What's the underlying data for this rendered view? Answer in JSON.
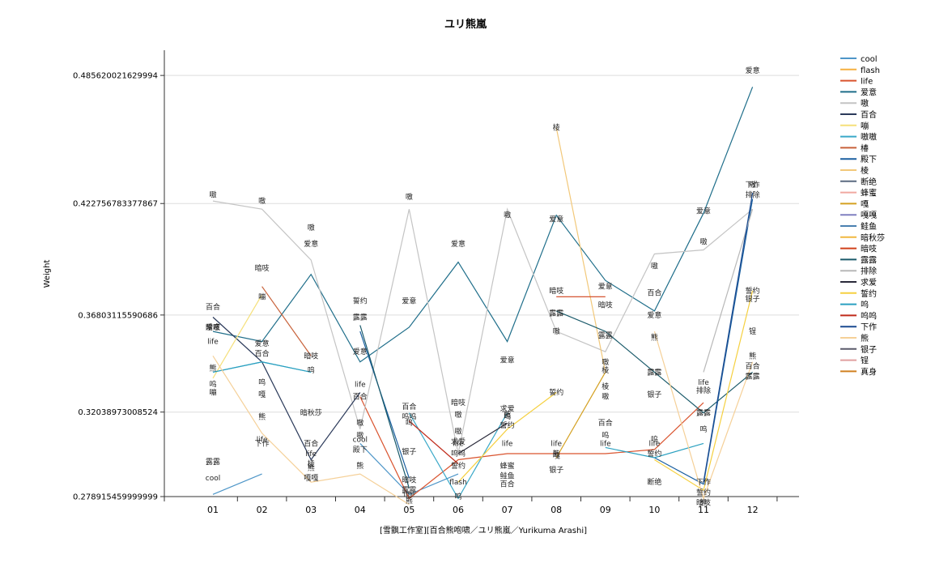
{
  "chart_data": {
    "type": "line",
    "title": "ユリ熊嵐",
    "xlabel": "[雪飘工作室][百合熊咆啸／ユリ熊嵐／Yurikuma Arashi]",
    "ylabel": "Weight",
    "categories": [
      "01",
      "02",
      "03",
      "04",
      "05",
      "06",
      "07",
      "08",
      "09",
      "10",
      "11",
      "12"
    ],
    "yticks": [
      0.485620021629994,
      0.422756783377867,
      0.36803115590686,
      0.32038973008524,
      0.278915459999999
    ],
    "ytick_labels": [
      "0.485620021629994",
      "0.422756783377867",
      "0.36803115590686",
      "0.32038973008524",
      "0.278915459999999"
    ],
    "ylim": [
      0.278915459999999,
      0.498
    ],
    "grid": true,
    "legend_position": "right",
    "series": [
      {
        "name": "cool",
        "color": "#4e96c8",
        "values": [
          0.28,
          0.29,
          null,
          0.305,
          0.28,
          0.29,
          null,
          null,
          null,
          null,
          null,
          null
        ]
      },
      {
        "name": "flash",
        "color": "#f6b040",
        "values": [
          null,
          null,
          null,
          null,
          null,
          0.284,
          null,
          null,
          null,
          null,
          null,
          null
        ]
      },
      {
        "name": "life",
        "color": "#d9532e",
        "values": [
          0.357,
          null,
          null,
          0.328,
          0.278,
          0.297,
          0.3,
          0.3,
          0.3,
          0.302,
          0.325,
          null
        ]
      },
      {
        "name": "爱意",
        "color": "#1f6e8a",
        "values": [
          0.36,
          0.355,
          0.388,
          0.345,
          0.362,
          0.394,
          0.355,
          0.417,
          0.385,
          0.37,
          0.418,
          0.48
        ]
      },
      {
        "name": "嗷",
        "color": "#c4c4c4",
        "values": [
          0.424,
          0.42,
          0.395,
          0.312,
          0.42,
          0.3,
          0.42,
          0.36,
          0.35,
          0.398,
          0.4,
          0.42
        ]
      },
      {
        "name": "百合",
        "color": "#2b3a5a",
        "values": [
          0.367,
          0.345,
          0.297,
          0.33,
          null,
          0.318,
          null,
          null,
          null,
          null,
          null,
          null
        ]
      },
      {
        "name": "嘣",
        "color": "#f5e07a",
        "values": [
          0.337,
          0.378,
          null,
          null,
          null,
          null,
          null,
          null,
          null,
          null,
          null,
          null
        ]
      },
      {
        "name": "嗷嗷",
        "color": "#39a8c8",
        "values": [
          0.34,
          0.345,
          0.34,
          null,
          0.32,
          0.278,
          0.32,
          null,
          null,
          null,
          null,
          null
        ]
      },
      {
        "name": "椿",
        "color": "#c8623a",
        "values": [
          null,
          0.382,
          0.348,
          null,
          null,
          null,
          null,
          null,
          null,
          null,
          null,
          null
        ]
      },
      {
        "name": "殿下",
        "color": "#1a5fa0",
        "values": [
          null,
          null,
          null,
          0.36,
          0.288,
          null,
          null,
          null,
          null,
          0.298,
          0.285,
          0.425
        ]
      },
      {
        "name": "棱",
        "color": "#f2c87a",
        "values": [
          null,
          null,
          null,
          null,
          null,
          null,
          null,
          0.46,
          0.34,
          null,
          null,
          null
        ]
      },
      {
        "name": "断绝",
        "color": "#5a6a80",
        "values": [
          null,
          null,
          null,
          null,
          null,
          null,
          null,
          null,
          null,
          0.282,
          null,
          null
        ]
      },
      {
        "name": "蜂蜜",
        "color": "#f0a8a0",
        "values": [
          null,
          null,
          null,
          null,
          null,
          null,
          0.288,
          null,
          null,
          null,
          null,
          null
        ]
      },
      {
        "name": "嘎",
        "color": "#d4a020",
        "values": [
          null,
          null,
          null,
          null,
          null,
          null,
          null,
          0.298,
          0.34,
          null,
          null,
          null
        ]
      },
      {
        "name": "嘎嘎",
        "color": "#8080c0",
        "values": [
          null,
          null,
          0.286,
          null,
          null,
          null,
          null,
          null,
          null,
          null,
          null,
          null
        ]
      },
      {
        "name": "鲑鱼",
        "color": "#4a80b0",
        "values": [
          null,
          null,
          null,
          null,
          null,
          null,
          0.286,
          null,
          null,
          null,
          null,
          null
        ]
      },
      {
        "name": "暗秋莎",
        "color": "#f0b840",
        "values": [
          null,
          null,
          0.32,
          null,
          null,
          null,
          null,
          null,
          null,
          null,
          null,
          null
        ]
      },
      {
        "name": "暗吱",
        "color": "#d0401a",
        "values": [
          0.36,
          null,
          null,
          null,
          null,
          0.325,
          null,
          0.377,
          0.377,
          null,
          null,
          null
        ]
      },
      {
        "name": "露露",
        "color": "#1a5a6a",
        "values": [
          0.282,
          null,
          null,
          0.363,
          0.283,
          null,
          null,
          0.37,
          0.36,
          0.34,
          0.32,
          0.34
        ]
      },
      {
        "name": "排除",
        "color": "#b8b8b8",
        "values": [
          null,
          null,
          null,
          null,
          null,
          null,
          null,
          null,
          null,
          null,
          0.34,
          0.42
        ]
      },
      {
        "name": "求爱",
        "color": "#2a2a3a",
        "values": [
          null,
          null,
          null,
          null,
          null,
          0.3,
          0.315,
          null,
          null,
          null,
          null,
          null
        ]
      },
      {
        "name": "誓约",
        "color": "#f5d040",
        "values": [
          null,
          null,
          null,
          0.37,
          null,
          0.286,
          0.312,
          0.33,
          null,
          0.297,
          0.282,
          0.38
        ]
      },
      {
        "name": "呜",
        "color": "#2aa0c0",
        "values": [
          0.34,
          0.345,
          0.34,
          null,
          0.318,
          null,
          0.318,
          null,
          0.303,
          0.298,
          0.305,
          null
        ]
      },
      {
        "name": "呜呜",
        "color": "#c02a1a",
        "values": [
          null,
          null,
          null,
          null,
          0.316,
          0.295,
          null,
          null,
          null,
          null,
          null,
          null
        ]
      },
      {
        "name": "下作",
        "color": "#1a4a90",
        "values": [
          null,
          null,
          null,
          null,
          null,
          null,
          null,
          null,
          null,
          null,
          0.286,
          0.428
        ]
      },
      {
        "name": "熊",
        "color": "#f5d098",
        "values": [
          0.348,
          0.31,
          0.286,
          0.29,
          0.275,
          null,
          null,
          0.297,
          null,
          0.36,
          0.278,
          0.345
        ]
      },
      {
        "name": "银子",
        "color": "#5a5a6a",
        "values": [
          null,
          null,
          null,
          null,
          0.29,
          null,
          null,
          0.292,
          null,
          0.33,
          null,
          0.38
        ]
      },
      {
        "name": "锃",
        "color": "#e0a0a0",
        "values": [
          null,
          null,
          null,
          null,
          null,
          null,
          null,
          null,
          null,
          null,
          null,
          0.36
        ]
      },
      {
        "name": "真身",
        "color": "#d08020",
        "values": [
          null,
          null,
          null,
          null,
          null,
          null,
          null,
          null,
          null,
          null,
          null,
          null
        ]
      }
    ],
    "annotations": [
      {
        "text": "嗷",
        "x": "01",
        "y": 0.427
      },
      {
        "text": "嗷",
        "x": "02",
        "y": 0.424
      },
      {
        "text": "嗷",
        "x": "03",
        "y": 0.411
      },
      {
        "text": "爱意",
        "x": "03",
        "y": 0.403
      },
      {
        "text": "暗吱",
        "x": "02",
        "y": 0.391
      },
      {
        "text": "嘣",
        "x": "02",
        "y": 0.377
      },
      {
        "text": "百合",
        "x": "01",
        "y": 0.372
      },
      {
        "text": "暗吱",
        "x": "01",
        "y": 0.362
      },
      {
        "text": "爱意",
        "x": "01",
        "y": 0.362
      },
      {
        "text": "life",
        "x": "01",
        "y": 0.355
      },
      {
        "text": "熊",
        "x": "01",
        "y": 0.342
      },
      {
        "text": "呜",
        "x": "01",
        "y": 0.334
      },
      {
        "text": "嘣",
        "x": "01",
        "y": 0.33
      },
      {
        "text": "露露",
        "x": "01",
        "y": 0.296
      },
      {
        "text": "cool",
        "x": "01",
        "y": 0.288
      },
      {
        "text": "爱意",
        "x": "02",
        "y": 0.354
      },
      {
        "text": "百合",
        "x": "02",
        "y": 0.349
      },
      {
        "text": "呜",
        "x": "02",
        "y": 0.335
      },
      {
        "text": "嘎",
        "x": "02",
        "y": 0.329
      },
      {
        "text": "熊",
        "x": "02",
        "y": 0.318
      },
      {
        "text": "life",
        "x": "02",
        "y": 0.307
      },
      {
        "text": "下作",
        "x": "02",
        "y": 0.305
      },
      {
        "text": "暗吱",
        "x": "03",
        "y": 0.348
      },
      {
        "text": "呜",
        "x": "03",
        "y": 0.341
      },
      {
        "text": "暗秋莎",
        "x": "03",
        "y": 0.32
      },
      {
        "text": "百合",
        "x": "03",
        "y": 0.305
      },
      {
        "text": "life",
        "x": "03",
        "y": 0.3
      },
      {
        "text": "棱",
        "x": "03",
        "y": 0.295
      },
      {
        "text": "熊",
        "x": "03",
        "y": 0.293
      },
      {
        "text": "嘎嘎",
        "x": "03",
        "y": 0.288
      },
      {
        "text": "誓约",
        "x": "04",
        "y": 0.375
      },
      {
        "text": "露露",
        "x": "04",
        "y": 0.367
      },
      {
        "text": "爱意",
        "x": "04",
        "y": 0.35
      },
      {
        "text": "life",
        "x": "04",
        "y": 0.334
      },
      {
        "text": "百合",
        "x": "04",
        "y": 0.328
      },
      {
        "text": "嗷",
        "x": "04",
        "y": 0.315
      },
      {
        "text": "嗷",
        "x": "04",
        "y": 0.309
      },
      {
        "text": "cool",
        "x": "04",
        "y": 0.307
      },
      {
        "text": "殿下",
        "x": "04",
        "y": 0.302
      },
      {
        "text": "熊",
        "x": "04",
        "y": 0.294
      },
      {
        "text": "嗷",
        "x": "05",
        "y": 0.426
      },
      {
        "text": "爱意",
        "x": "05",
        "y": 0.375
      },
      {
        "text": "百合",
        "x": "05",
        "y": 0.323
      },
      {
        "text": "呜呜",
        "x": "05",
        "y": 0.318
      },
      {
        "text": "呜",
        "x": "05",
        "y": 0.315
      },
      {
        "text": "银子",
        "x": "05",
        "y": 0.301
      },
      {
        "text": "暗吱",
        "x": "05",
        "y": 0.287
      },
      {
        "text": "露露",
        "x": "05",
        "y": 0.282
      },
      {
        "text": "life",
        "x": "05",
        "y": 0.28
      },
      {
        "text": "熊",
        "x": "05",
        "y": 0.277
      },
      {
        "text": "爱意",
        "x": "06",
        "y": 0.403
      },
      {
        "text": "暗吱",
        "x": "06",
        "y": 0.325
      },
      {
        "text": "嗷",
        "x": "06",
        "y": 0.319
      },
      {
        "text": "嗷",
        "x": "06",
        "y": 0.311
      },
      {
        "text": "求爱",
        "x": "06",
        "y": 0.306
      },
      {
        "text": "life",
        "x": "06",
        "y": 0.305
      },
      {
        "text": "呜呜",
        "x": "06",
        "y": 0.3
      },
      {
        "text": "誓约",
        "x": "06",
        "y": 0.294
      },
      {
        "text": "flash",
        "x": "06",
        "y": 0.286
      },
      {
        "text": "呜",
        "x": "06",
        "y": 0.279
      },
      {
        "text": "嗷",
        "x": "07",
        "y": 0.417
      },
      {
        "text": "爱意",
        "x": "07",
        "y": 0.346
      },
      {
        "text": "求爱",
        "x": "07",
        "y": 0.322
      },
      {
        "text": "呜",
        "x": "07",
        "y": 0.318
      },
      {
        "text": "誓约",
        "x": "07",
        "y": 0.314
      },
      {
        "text": "熊",
        "x": "07",
        "y": 0.319
      },
      {
        "text": "life",
        "x": "07",
        "y": 0.305
      },
      {
        "text": "蜂蜜",
        "x": "07",
        "y": 0.294
      },
      {
        "text": "鲑鱼",
        "x": "07",
        "y": 0.289
      },
      {
        "text": "百合",
        "x": "07",
        "y": 0.285
      },
      {
        "text": "棱",
        "x": "08",
        "y": 0.46
      },
      {
        "text": "爱意",
        "x": "08",
        "y": 0.415
      },
      {
        "text": "暗吱",
        "x": "08",
        "y": 0.38
      },
      {
        "text": "露露",
        "x": "08",
        "y": 0.369
      },
      {
        "text": "嗷",
        "x": "08",
        "y": 0.36
      },
      {
        "text": "誓约",
        "x": "08",
        "y": 0.33
      },
      {
        "text": "life",
        "x": "08",
        "y": 0.305
      },
      {
        "text": "熊",
        "x": "08",
        "y": 0.3
      },
      {
        "text": "嘎",
        "x": "08",
        "y": 0.299
      },
      {
        "text": "银子",
        "x": "08",
        "y": 0.292
      },
      {
        "text": "爱意",
        "x": "09",
        "y": 0.382
      },
      {
        "text": "暗吱",
        "x": "09",
        "y": 0.373
      },
      {
        "text": "露露",
        "x": "09",
        "y": 0.358
      },
      {
        "text": "嗷",
        "x": "09",
        "y": 0.345
      },
      {
        "text": "棱",
        "x": "09",
        "y": 0.341
      },
      {
        "text": "棱",
        "x": "09",
        "y": 0.333
      },
      {
        "text": "嗷",
        "x": "09",
        "y": 0.328
      },
      {
        "text": "百合",
        "x": "09",
        "y": 0.315
      },
      {
        "text": "呜",
        "x": "09",
        "y": 0.309
      },
      {
        "text": "life",
        "x": "09",
        "y": 0.305
      },
      {
        "text": "嗷",
        "x": "10",
        "y": 0.392
      },
      {
        "text": "百合",
        "x": "10",
        "y": 0.379
      },
      {
        "text": "爱意",
        "x": "10",
        "y": 0.368
      },
      {
        "text": "熊",
        "x": "10",
        "y": 0.357
      },
      {
        "text": "露露",
        "x": "10",
        "y": 0.34
      },
      {
        "text": "银子",
        "x": "10",
        "y": 0.329
      },
      {
        "text": "life",
        "x": "10",
        "y": 0.305
      },
      {
        "text": "誓约",
        "x": "10",
        "y": 0.3
      },
      {
        "text": "呜",
        "x": "10",
        "y": 0.307
      },
      {
        "text": "断绝",
        "x": "10",
        "y": 0.286
      },
      {
        "text": "爱意",
        "x": "11",
        "y": 0.419
      },
      {
        "text": "嗷",
        "x": "11",
        "y": 0.404
      },
      {
        "text": "life",
        "x": "11",
        "y": 0.335
      },
      {
        "text": "排除",
        "x": "11",
        "y": 0.331
      },
      {
        "text": "露露",
        "x": "11",
        "y": 0.32
      },
      {
        "text": "呜",
        "x": "11",
        "y": 0.312
      },
      {
        "text": "下作",
        "x": "11",
        "y": 0.286
      },
      {
        "text": "誓约",
        "x": "11",
        "y": 0.281
      },
      {
        "text": "暗吱",
        "x": "11",
        "y": 0.276
      },
      {
        "text": "熊",
        "x": "11",
        "y": 0.276
      },
      {
        "text": "爱意",
        "x": "12",
        "y": 0.488
      },
      {
        "text": "下作",
        "x": "12",
        "y": 0.432
      },
      {
        "text": "嗷",
        "x": "12",
        "y": 0.432
      },
      {
        "text": "排除",
        "x": "12",
        "y": 0.427
      },
      {
        "text": "誓约",
        "x": "12",
        "y": 0.38
      },
      {
        "text": "银子",
        "x": "12",
        "y": 0.376
      },
      {
        "text": "锃",
        "x": "12",
        "y": 0.36
      },
      {
        "text": "熊",
        "x": "12",
        "y": 0.348
      },
      {
        "text": "百合",
        "x": "12",
        "y": 0.343
      },
      {
        "text": "露露",
        "x": "12",
        "y": 0.338
      }
    ]
  }
}
